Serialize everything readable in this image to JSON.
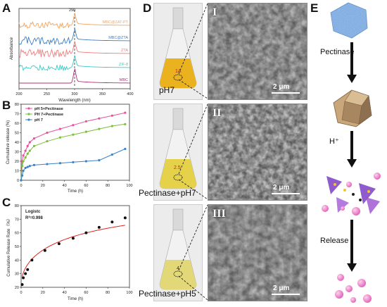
{
  "panels": {
    "A": "A",
    "B": "B",
    "C": "C",
    "D": "D",
    "E": "E"
  },
  "panel_a": {
    "peak_label": "290",
    "xlabel": "Wavelength (nm)",
    "ylabel": "Absorbance",
    "xticks": [
      "200",
      "250",
      "300",
      "350",
      "400"
    ],
    "traces": [
      {
        "name": "MBC@ZAT-PT",
        "color": "#f5a35c"
      },
      {
        "name": "MBC@ZTA",
        "color": "#3d7fc4"
      },
      {
        "name": "ZTA",
        "color": "#f07b7b"
      },
      {
        "name": "ZIF-8",
        "color": "#3cc9c4"
      },
      {
        "name": "MBC",
        "color": "#b0307a"
      }
    ]
  },
  "panel_b": {
    "xlabel": "Time (h)",
    "ylabel": "Cumulative release (%)",
    "xticks": [
      "0",
      "20",
      "40",
      "60",
      "80",
      "100"
    ],
    "yticks": [
      "0",
      "10",
      "20",
      "30",
      "40",
      "50",
      "60",
      "70",
      "80"
    ],
    "legend": [
      "pH 5+Pectinase",
      "PH 7+Pectinase",
      "pH 7"
    ]
  },
  "panel_c": {
    "xlabel": "Time (h)",
    "ylabel": "Cumulative Release Rate（%）",
    "xticks": [
      "0",
      "20",
      "40",
      "60",
      "80",
      "100"
    ],
    "yticks": [
      "20",
      "30",
      "40",
      "50",
      "60",
      "70",
      "80"
    ],
    "fit_name": "Logistc",
    "r2": "R²=0.998"
  },
  "panel_d": {
    "rows": [
      {
        "caption": "pH7",
        "roman": "I",
        "scale": "2 μm",
        "flask_mark": "1A",
        "liquid": "#e9b21e"
      },
      {
        "caption": "Pectinase+pH7",
        "roman": "II",
        "scale": "2 μm",
        "flask_mark": "2.5",
        "liquid": "#e6d24a"
      },
      {
        "caption": "Pectinase+pH5",
        "roman": "III",
        "scale": "2 μm",
        "flask_mark": "4",
        "liquid": "#e3d878"
      }
    ]
  },
  "panel_e": {
    "steps": [
      "Pectinase",
      "H⁺",
      "Release"
    ]
  },
  "chart_data": [
    {
      "type": "line",
      "title": "",
      "xlabel": "Time (h)",
      "ylabel": "Cumulative release (%)",
      "xlim": [
        0,
        100
      ],
      "ylim": [
        0,
        80
      ],
      "x": [
        0,
        1,
        2,
        4,
        6,
        8,
        12,
        24,
        36,
        48,
        60,
        72,
        84,
        96
      ],
      "series": [
        {
          "name": "pH 5+Pectinase",
          "color": "#ec4fa0",
          "values": [
            0,
            20,
            26,
            31,
            36,
            40,
            44,
            50,
            54,
            58,
            62,
            65,
            68,
            71
          ]
        },
        {
          "name": "PH 7+Pectinase",
          "color": "#7bbf3a",
          "values": [
            0,
            15,
            20,
            24,
            28,
            31,
            36,
            41,
            45,
            48,
            51,
            54,
            57,
            59
          ]
        },
        {
          "name": "pH 7",
          "color": "#3b82c9",
          "values": [
            0,
            5,
            10,
            13,
            14,
            15,
            16,
            17,
            18,
            19,
            20,
            21,
            27,
            33
          ]
        }
      ]
    },
    {
      "type": "scatter",
      "title": "",
      "xlabel": "Time (h)",
      "ylabel": "Cumulative Release Rate（%）",
      "xlim": [
        0,
        100
      ],
      "ylim": [
        20,
        80
      ],
      "x": [
        1,
        2,
        4,
        6,
        10,
        22,
        35,
        48,
        60,
        72,
        84,
        96
      ],
      "values": [
        22,
        27,
        30,
        33,
        40,
        47,
        52,
        56,
        60,
        64,
        68,
        71
      ],
      "fit": {
        "name": "Logistc",
        "r2": 0.998,
        "color": "#e02424"
      }
    }
  ]
}
